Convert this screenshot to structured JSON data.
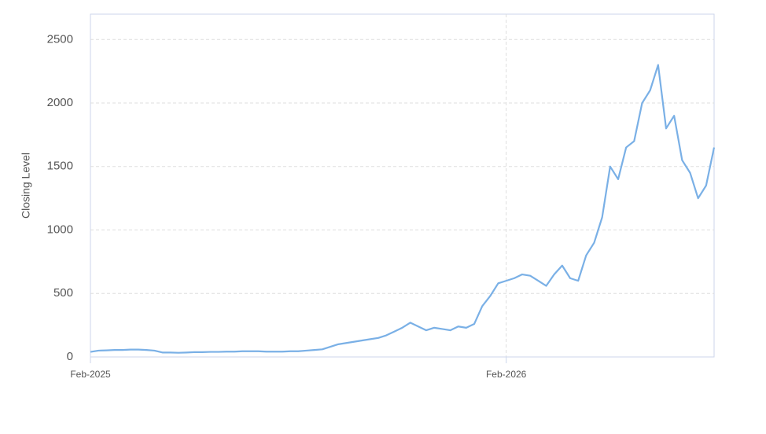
{
  "chart_data": {
    "type": "line",
    "y_label": "Closing Level",
    "categories": [
      "Feb-2025",
      null,
      null,
      null,
      null,
      null,
      null,
      null,
      null,
      null,
      null,
      null,
      null,
      null,
      null,
      null,
      null,
      null,
      null,
      null,
      null,
      null,
      null,
      null,
      null,
      null,
      null,
      null,
      null,
      null,
      null,
      null,
      null,
      null,
      null,
      null,
      null,
      null,
      null,
      null,
      null,
      null,
      null,
      null,
      null,
      null,
      null,
      null,
      null,
      null,
      null,
      null,
      "Feb-2026",
      null,
      null,
      null,
      null,
      null,
      null,
      null,
      null,
      null,
      null,
      null,
      null,
      null,
      null,
      null,
      null,
      null,
      null,
      null,
      null,
      null,
      null,
      null,
      null,
      null,
      null
    ],
    "series": [
      {
        "name": "Closing Level",
        "color": "#7ab0e6",
        "values": [
          40,
          50,
          52,
          55,
          55,
          58,
          58,
          55,
          50,
          35,
          35,
          33,
          35,
          38,
          38,
          40,
          40,
          42,
          42,
          45,
          45,
          45,
          42,
          42,
          42,
          45,
          45,
          50,
          55,
          60,
          80,
          100,
          110,
          120,
          130,
          140,
          150,
          170,
          200,
          230,
          270,
          240,
          210,
          230,
          220,
          210,
          240,
          230,
          260,
          400,
          480,
          580,
          600,
          620,
          650,
          640,
          600,
          560,
          650,
          720,
          620,
          600,
          800,
          900,
          1100,
          1500,
          1400,
          1650,
          1700,
          2000,
          2100,
          2300,
          1800,
          1900,
          1550,
          1450,
          1250,
          1350,
          1650
        ]
      }
    ],
    "ylim": [
      0,
      2700
    ],
    "yticks": [
      0,
      500,
      1000,
      1500,
      2000,
      2500
    ],
    "grid": true
  }
}
